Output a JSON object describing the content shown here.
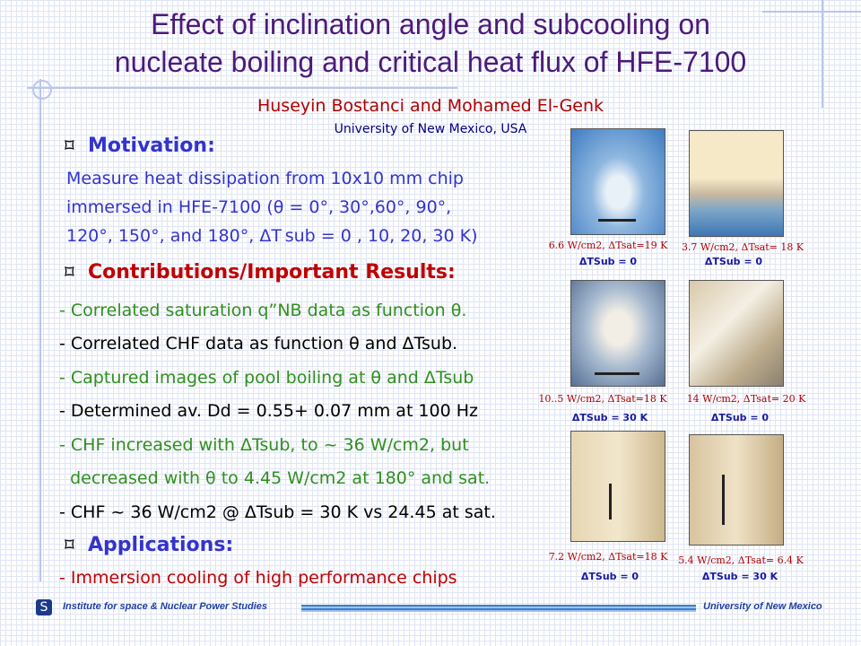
{
  "title_line1": "Effect of inclination angle and subcooling on",
  "title_line2": "nucleate boiling and critical heat flux of HFE-7100",
  "authors": "Huseyin Bostanci and Mohamed El-Genk",
  "affiliation": "University of New Mexico, USA",
  "bullet_glyph": "⌑",
  "motivation": {
    "heading": "Motivation:",
    "line1": "Measure heat dissipation from 10x10 mm chip",
    "line2": "immersed in HFE-7100 (θ = 0°, 30°,60°, 90°,",
    "line3": "120°, 150°, and 180°, ΔT sub = 0 , 10, 20, 30 K)"
  },
  "results": {
    "heading": "Contributions/Important Results:",
    "items": [
      "- Correlated saturation q”NB data as function θ.",
      "- Correlated CHF data as function θ and ΔTsub.",
      "- Captured images of pool boiling at θ and ΔTsub",
      "- Determined av. Dd = 0.55+ 0.07 mm at 100 Hz",
      "- CHF increased with ΔTsub, to ~ 36 W/cm2, but",
      "  decreased with θ to 4.45 W/cm2 at 180° and sat.",
      "- CHF ~ 36 W/cm2 @ ΔTsub = 30 K vs 24.45 at sat."
    ]
  },
  "applications": {
    "heading": "Applications:",
    "item": "- Immersion cooling of high performance chips"
  },
  "photos": [
    {
      "cap": "6.6 W/cm2, ΔTsat=19 K",
      "sub": "ΔTSub = 0"
    },
    {
      "cap": "3.7 W/cm2, ΔTsat= 18 K",
      "sub": "ΔTSub = 0"
    },
    {
      "cap": "10..5 W/cm2, ΔTsat=18 K",
      "sub": "ΔTSub = 30 K"
    },
    {
      "cap": "14 W/cm2, ΔTsat= 20 K",
      "sub": "ΔTSub = 0"
    },
    {
      "cap": "7.2 W/cm2, ΔTsat=18 K",
      "sub": "ΔTSub = 0"
    },
    {
      "cap": "5.4 W/cm2, ΔTsat= 6.4 K",
      "sub": "ΔTSub = 30 K"
    }
  ],
  "footer": {
    "left": "Institute for space & Nuclear Power Studies",
    "right": "University of New Mexico",
    "logo_glyph": "S"
  }
}
